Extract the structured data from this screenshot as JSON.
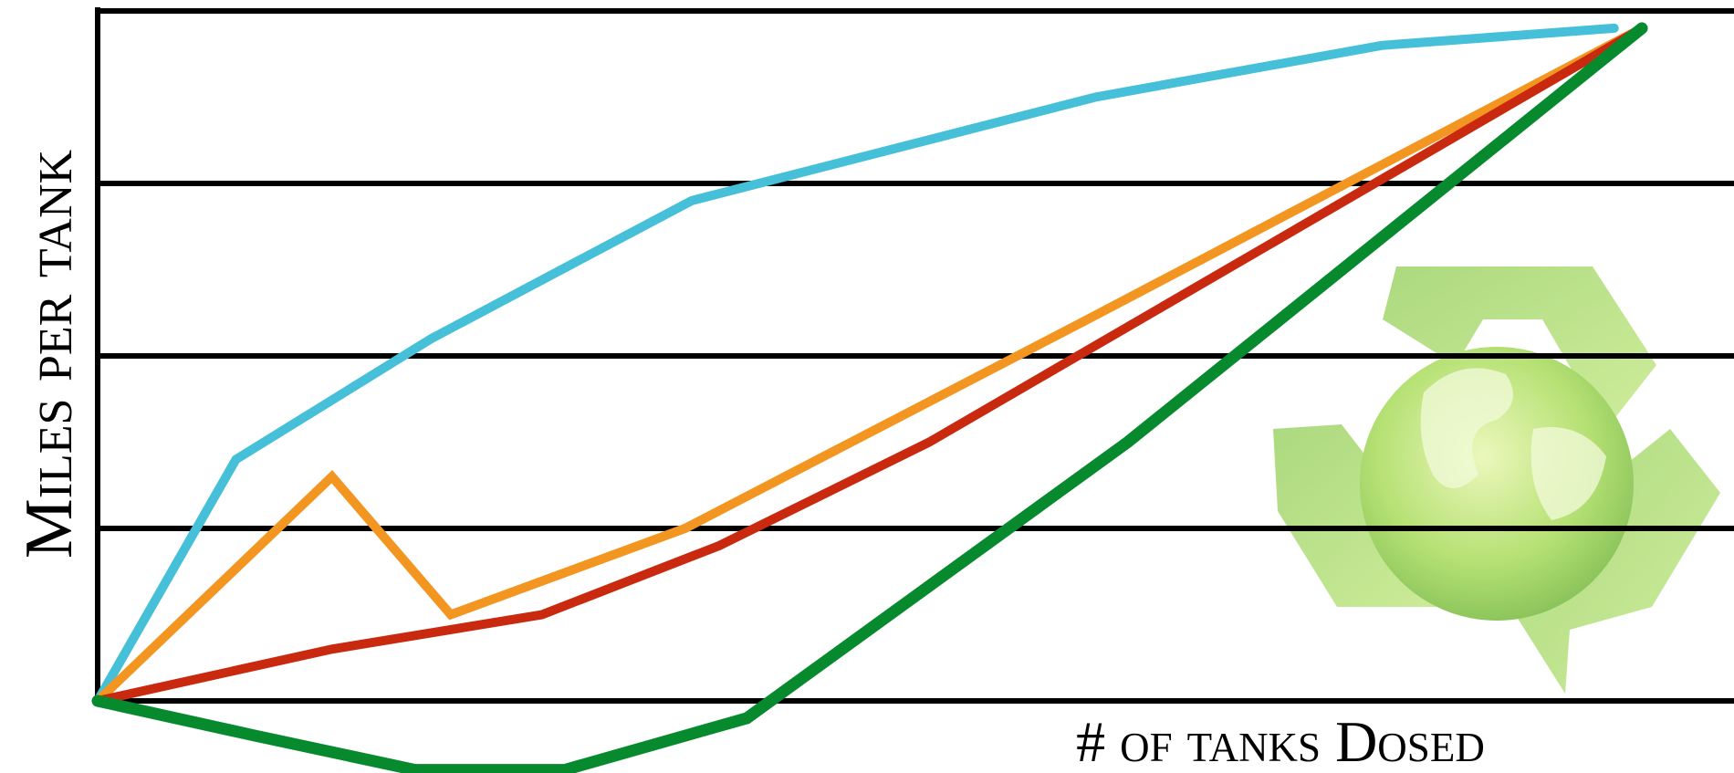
{
  "chart_data": {
    "type": "line",
    "ylabel": "Miles per tank",
    "xlabel": "# of tanks Dosed",
    "xlim": [
      0,
      100
    ],
    "ylim": [
      -0.4,
      4
    ],
    "yticks": [
      0,
      1,
      2,
      3,
      4
    ],
    "grid": true,
    "series": [
      {
        "color": "#45c0d8",
        "x": [
          0,
          8.5,
          20.5,
          36.5,
          61.3,
          78.9,
          93.2
        ],
        "values": [
          0,
          1.4,
          2.1,
          2.9,
          3.5,
          3.8,
          3.9
        ]
      },
      {
        "color": "#f39621",
        "x": [
          0,
          14.4,
          21.7,
          36.1,
          60.6,
          94.9
        ],
        "values": [
          0,
          1.3,
          0.5,
          1.0,
          2.2,
          3.9
        ]
      },
      {
        "color": "#c8290f",
        "x": [
          0,
          14.4,
          27.3,
          38.2,
          51.1,
          94.9
        ],
        "values": [
          0,
          0.3,
          0.5,
          0.9,
          1.5,
          3.9
        ]
      },
      {
        "color": "#078a2e",
        "x": [
          0,
          9.6,
          19.5,
          28.7,
          39.9,
          63.3,
          94.9
        ],
        "values": [
          0,
          -0.2,
          -0.4,
          -0.4,
          -0.1,
          1.5,
          3.9
        ]
      }
    ]
  }
}
